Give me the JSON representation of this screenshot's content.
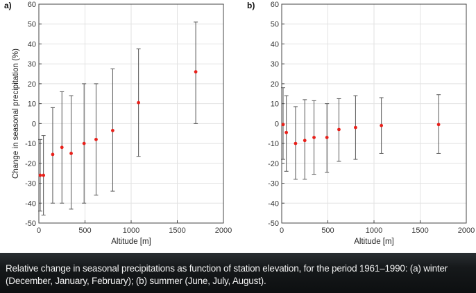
{
  "caption": "Relative change in seasonal precipitations as function of station elevation, for the period 1961–1990: (a) winter (December, January, February); (b) summer (June, July, August).",
  "colors": {
    "point": "#e8201a",
    "errorbar": "#555555",
    "caption_bg": "#111416",
    "caption_text": "#f2f2f2"
  },
  "chart_data": [
    {
      "type": "scatter",
      "panel_label": "a)",
      "title": "",
      "xlabel": "Altitude [m]",
      "ylabel": "Change in seasonal precipitation (%)",
      "xlim": [
        0,
        2000
      ],
      "ylim": [
        -50,
        60
      ],
      "xticks": [
        0,
        500,
        1000,
        1500,
        2000
      ],
      "yticks": [
        -50,
        -40,
        -30,
        -20,
        -10,
        0,
        10,
        20,
        30,
        40,
        50,
        60
      ],
      "grid": true,
      "series": [
        {
          "x": [
            15,
            50,
            150,
            250,
            350,
            490,
            620,
            800,
            1080,
            1700
          ],
          "y": [
            -26,
            -26,
            -15.5,
            -12,
            -15,
            -10,
            -8,
            -3.5,
            10.5,
            26
          ],
          "err_low": [
            -44,
            -46,
            -40,
            -40,
            -43,
            -40,
            -36,
            -34,
            -16.5,
            0
          ],
          "err_high": [
            -8,
            -6,
            8,
            16,
            14,
            20,
            20,
            27.5,
            37.5,
            51
          ]
        }
      ]
    },
    {
      "type": "scatter",
      "panel_label": "b)",
      "title": "",
      "xlabel": "Altitude [m]",
      "ylabel": "",
      "xlim": [
        0,
        2000
      ],
      "ylim": [
        -50,
        60
      ],
      "xticks": [
        0,
        500,
        1000,
        1500,
        2000
      ],
      "yticks": [
        -50,
        -40,
        -30,
        -20,
        -10,
        0,
        10,
        20,
        30,
        40,
        50,
        60
      ],
      "grid": true,
      "series": [
        {
          "x": [
            15,
            50,
            150,
            250,
            350,
            490,
            620,
            800,
            1080,
            1700
          ],
          "y": [
            -0.5,
            -4.5,
            -10,
            -8.5,
            -7,
            -7,
            -3,
            -2,
            -1,
            -0.5
          ],
          "err_low": [
            -18,
            -24,
            -28,
            -28,
            -25.5,
            -24.5,
            -19,
            -18,
            -15,
            -15
          ],
          "err_high": [
            18,
            14,
            8.5,
            12,
            11.5,
            10,
            12.5,
            14,
            13,
            14.5
          ]
        }
      ]
    }
  ]
}
